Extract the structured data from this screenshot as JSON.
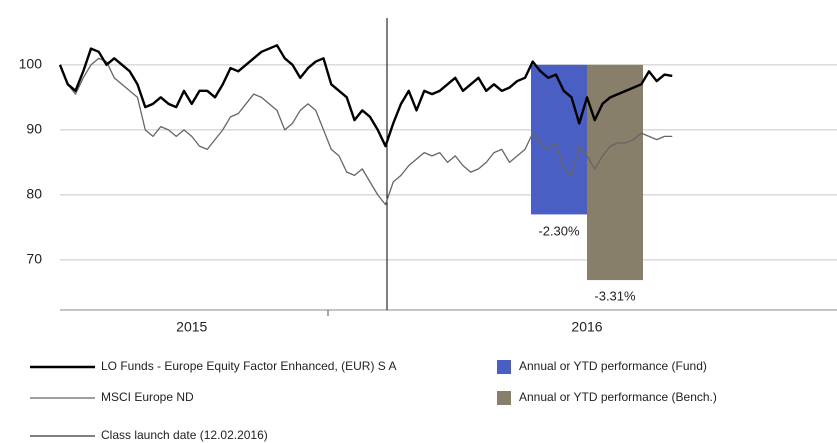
{
  "chart_data": {
    "type": "line",
    "categories": [
      null,
      null,
      null,
      null,
      null,
      null,
      null,
      null,
      null,
      null,
      null,
      null,
      null,
      null,
      null,
      null,
      null,
      "2015",
      null,
      null,
      null,
      null,
      null,
      null,
      null,
      null,
      null,
      null,
      null,
      null,
      null,
      null,
      null,
      null,
      null,
      null,
      null,
      null,
      null,
      null,
      null,
      null,
      null,
      null,
      null,
      null,
      null,
      null,
      null,
      null,
      null,
      null,
      null,
      null,
      null,
      null,
      null,
      null,
      null,
      null,
      null,
      null,
      null,
      null,
      null,
      null,
      null,
      null,
      "2016",
      null,
      null,
      null,
      null,
      null,
      null,
      null,
      null,
      null,
      null,
      null
    ],
    "ylim": [
      62.3,
      107.2
    ],
    "yticks": [
      70,
      80,
      90,
      100
    ],
    "grid": true,
    "y2lim": [
      -3.77,
      0.72
    ],
    "series": [
      {
        "name": "LO Funds - Europe Equity Factor Enhanced, (EUR) S A",
        "color": "#000000",
        "values": [
          100,
          97,
          96,
          99,
          102.5,
          102,
          100,
          101,
          100,
          99,
          97,
          93.5,
          94,
          95,
          94,
          93.5,
          96,
          94,
          96,
          96,
          95,
          97,
          99.5,
          99,
          100,
          101,
          102,
          102.5,
          103,
          101,
          100,
          98,
          99.5,
          100.5,
          101,
          97,
          96,
          95,
          91.5,
          93,
          92,
          90,
          87.5,
          91,
          94,
          96,
          93,
          96,
          95.5,
          96,
          97,
          98,
          96,
          97,
          98,
          96,
          97,
          96,
          96.5,
          97.5,
          98,
          100.5,
          99,
          98,
          98.5,
          96,
          95,
          91,
          95,
          91.5,
          94,
          95,
          95.5,
          96,
          96.5,
          97,
          99,
          97.5,
          98.5,
          98.3
        ]
      },
      {
        "name": "MSCI Europe ND",
        "color": "#666666",
        "values": [
          100,
          97,
          95.5,
          98,
          100,
          101,
          100.5,
          98,
          97,
          96,
          95,
          90,
          89,
          90.5,
          90,
          89,
          90,
          89,
          87.5,
          87,
          88.5,
          90,
          92,
          92.5,
          94,
          95.5,
          95,
          94,
          93,
          90,
          91,
          93,
          94,
          93,
          90,
          87,
          86,
          83.5,
          83,
          84,
          82,
          80,
          78.5,
          82,
          83,
          84.5,
          85.5,
          86.5,
          86,
          86.5,
          85,
          86,
          84.5,
          83.5,
          84,
          85,
          86.5,
          87,
          85,
          86,
          87,
          89.5,
          88,
          87,
          88,
          84,
          83,
          87.5,
          86,
          84,
          86,
          87.5,
          88,
          88,
          88.5,
          89.5,
          89,
          88.5,
          89,
          89
        ]
      }
    ],
    "bar_series": [
      {
        "name": "Annual or YTD performance (Fund)",
        "color": "#4a5fc4",
        "axis": "y2",
        "values": [
          -2.3
        ],
        "value_labels": [
          "-2.30%"
        ]
      },
      {
        "name": "Annual or YTD performance (Bench.)",
        "color": "#877f6a",
        "axis": "y2",
        "values": [
          -3.31
        ],
        "value_labels": [
          "-3.31%"
        ]
      }
    ],
    "annotation": "Class launch date (12.02.2016)"
  }
}
